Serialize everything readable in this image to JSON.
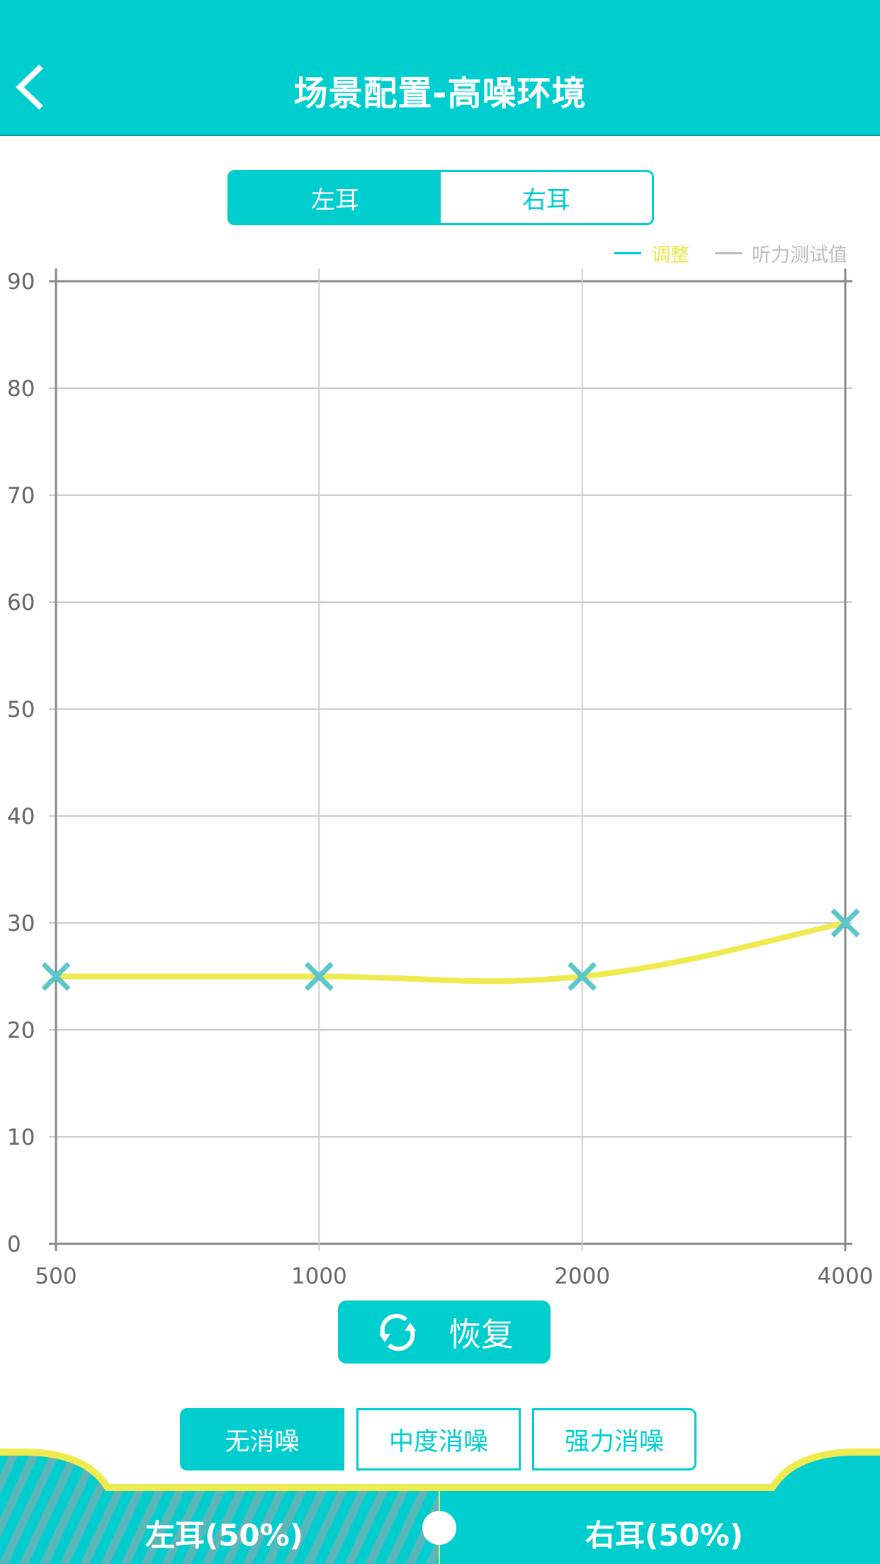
{
  "header": {
    "title": "场景配置-高噪环境",
    "back_icon": "chevron-left-icon"
  },
  "ear_tabs": [
    {
      "label": "左耳",
      "selected": true
    },
    {
      "label": "右耳",
      "selected": false
    }
  ],
  "legend": [
    {
      "label": "调整",
      "line_color": "#00cdce",
      "text_color": "#e8e84a"
    },
    {
      "label": "听力测试值",
      "line_color": "#bdbdbd",
      "text_color": "#bdbdbd"
    }
  ],
  "chart_data": {
    "type": "line",
    "categories": [
      "500",
      "1000",
      "2000",
      "4000"
    ],
    "yticks": [
      "0",
      "10",
      "20",
      "30",
      "40",
      "50",
      "60",
      "70",
      "80",
      "90"
    ],
    "ylim": [
      0,
      90
    ],
    "grid": true,
    "legend_placement": "top-right",
    "series": [
      {
        "name": "调整",
        "values": [
          25,
          25,
          25,
          30
        ],
        "line_color": "#eeea50",
        "marker": "x",
        "marker_color": "#5cc6c8"
      }
    ]
  },
  "restore": {
    "label": "恢复",
    "icon": "refresh-icon"
  },
  "noise_modes": [
    {
      "label": "无消噪",
      "selected": true
    },
    {
      "label": "中度消噪",
      "selected": false
    },
    {
      "label": "强力消噪",
      "selected": false
    }
  ],
  "balance": {
    "left_label": "左耳(50%)",
    "right_label": "右耳(50%)",
    "value_percent": 50
  },
  "colors": {
    "accent": "#00cdce",
    "highlight": "#eeea50"
  }
}
